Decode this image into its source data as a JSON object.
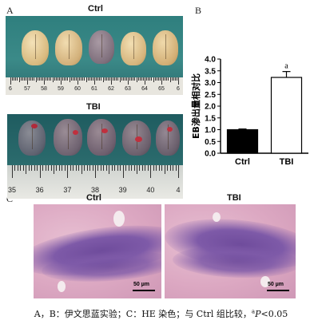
{
  "panel_labels": {
    "a": "A",
    "b": "B",
    "c": "C"
  },
  "panel_a": {
    "ctrl_label": "Ctrl",
    "tbi_label": "TBI",
    "ctrl_ruler_numbers": [
      "6",
      "57",
      "58",
      "59",
      "60",
      "61",
      "62",
      "63",
      "64",
      "65",
      "6"
    ],
    "tbi_ruler_numbers": [
      "35",
      "36",
      "37",
      "38",
      "39",
      "40",
      "4"
    ]
  },
  "chart_data": {
    "type": "bar",
    "categories": [
      "Ctrl",
      "TBI"
    ],
    "values": [
      1.0,
      3.22
    ],
    "errors": [
      0.03,
      0.25
    ],
    "ylabel": "EB渗出量相对比",
    "ylim": [
      0,
      4.0
    ],
    "yticks": [
      "0.0",
      "0.5",
      "1.0",
      "1.5",
      "2.0",
      "2.5",
      "3.0",
      "3.5",
      "4.0"
    ],
    "annotations": [
      "",
      "a"
    ],
    "colors": [
      "#000000",
      "#ffffff"
    ]
  },
  "panel_c": {
    "ctrl_label": "Ctrl",
    "tbi_label": "TBI",
    "scale_label_left": "50 µm",
    "scale_label_right": "50 µm"
  },
  "caption": {
    "main": "A，B：伊文思蓝实验；C：HE 染色；与 Ctrl 组比较，",
    "sup": "a",
    "italic": "P",
    "tail": "<0.05"
  }
}
